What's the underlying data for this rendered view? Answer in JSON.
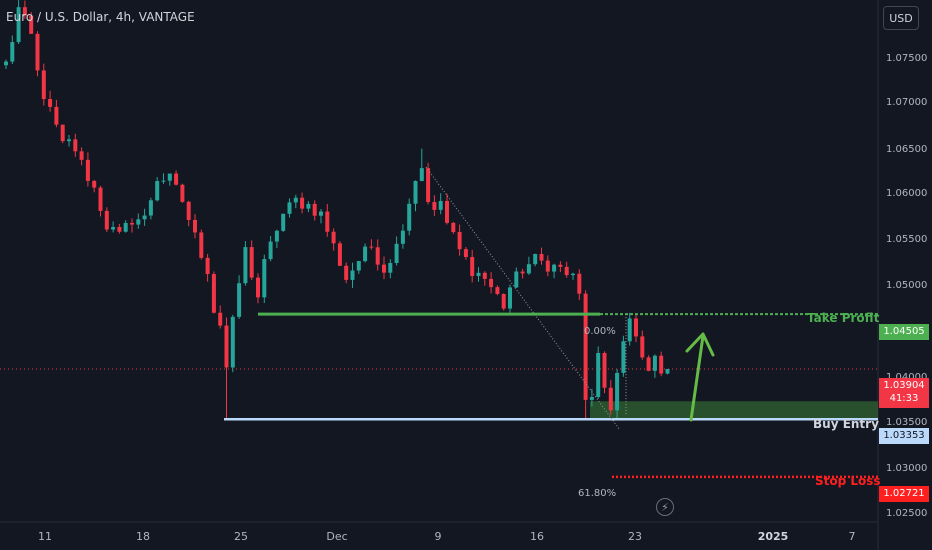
{
  "header": {
    "title": "Euro / U.S. Dollar, 4h, VANTAGE"
  },
  "currency_button": "USD",
  "price_axis": {
    "ticks": [
      "1.07500",
      "1.07000",
      "1.06500",
      "1.06000",
      "1.05500",
      "1.05000",
      "1.04000",
      "1.03500",
      "1.03000",
      "1.02500"
    ]
  },
  "time_axis": {
    "ticks": [
      {
        "label": "11",
        "bold": false
      },
      {
        "label": "18",
        "bold": false
      },
      {
        "label": "25",
        "bold": false
      },
      {
        "label": "Dec",
        "bold": false
      },
      {
        "label": "9",
        "bold": false
      },
      {
        "label": "16",
        "bold": false
      },
      {
        "label": "23",
        "bold": false
      },
      {
        "label": "2025",
        "bold": true
      },
      {
        "label": "7",
        "bold": false
      }
    ]
  },
  "price_tags": {
    "take_profit": "1.04505",
    "current_price": "1.03904",
    "countdown": "41:33",
    "buy_entry": "1.03353",
    "stop_loss": "1.02721"
  },
  "annotations": {
    "take_profit": "Take Profit",
    "buy_entry": "Buy Entry",
    "stop_loss": "Stop Loss",
    "fib_top": "0.00%",
    "fib_bottom": "61.80%"
  },
  "colors": {
    "background": "#131722",
    "up": "#26a69a",
    "down": "#f23645",
    "take_profit": "#4caf50",
    "buy_entry_line": "#bbd9fb",
    "buy_zone": "#2e5a2e",
    "stop_loss": "#ff1f1f",
    "arrow": "#66bb46"
  },
  "chart_data": {
    "type": "candlestick",
    "symbol": "Euro / U.S. Dollar",
    "interval": "4h",
    "ylim": [
      1.0245,
      1.0795
    ],
    "levels": {
      "take_profit": 1.04505,
      "current": 1.03904,
      "buy_entry": 1.03353,
      "buy_zone_top": 1.0355,
      "stop_loss": 1.02721
    },
    "anchor_points": [
      {
        "x": 0.0,
        "y": 1.0725
      },
      {
        "x": 1.0,
        "y": 1.0752
      },
      {
        "x": 2.0,
        "y": 1.0785
      },
      {
        "x": 3.0,
        "y": 1.077
      },
      {
        "x": 4.0,
        "y": 1.0755
      },
      {
        "x": 5.0,
        "y": 1.0715
      },
      {
        "x": 6.5,
        "y": 1.068
      },
      {
        "x": 8.0,
        "y": 1.0655
      },
      {
        "x": 9.0,
        "y": 1.0635
      },
      {
        "x": 10.5,
        "y": 1.064
      },
      {
        "x": 12.0,
        "y": 1.0615
      },
      {
        "x": 14.0,
        "y": 1.0588
      },
      {
        "x": 16.0,
        "y": 1.0548
      },
      {
        "x": 18.0,
        "y": 1.0535
      },
      {
        "x": 20.0,
        "y": 1.0555
      },
      {
        "x": 22.0,
        "y": 1.0555
      },
      {
        "x": 24.0,
        "y": 1.06
      },
      {
        "x": 26.0,
        "y": 1.0598
      },
      {
        "x": 28.0,
        "y": 1.0575
      },
      {
        "x": 30.0,
        "y": 1.0535
      },
      {
        "x": 32.0,
        "y": 1.05
      },
      {
        "x": 33.0,
        "y": 1.0455
      },
      {
        "x": 34.0,
        "y": 1.044
      },
      {
        "x": 35.0,
        "y": 1.0392
      },
      {
        "x": 36.0,
        "y": 1.044
      },
      {
        "x": 37.0,
        "y": 1.0485
      },
      {
        "x": 38.0,
        "y": 1.052
      },
      {
        "x": 40.0,
        "y": 1.047
      },
      {
        "x": 41.0,
        "y": 1.0505
      },
      {
        "x": 43.0,
        "y": 1.0545
      },
      {
        "x": 44.0,
        "y": 1.056
      },
      {
        "x": 46.0,
        "y": 1.0575
      },
      {
        "x": 48.0,
        "y": 1.057
      },
      {
        "x": 50.0,
        "y": 1.056
      },
      {
        "x": 52.0,
        "y": 1.0525
      },
      {
        "x": 54.0,
        "y": 1.049
      },
      {
        "x": 56.0,
        "y": 1.051
      },
      {
        "x": 58.0,
        "y": 1.0525
      },
      {
        "x": 60.0,
        "y": 1.05
      },
      {
        "x": 62.0,
        "y": 1.0525
      },
      {
        "x": 64.0,
        "y": 1.0575
      },
      {
        "x": 65.0,
        "y": 1.06
      },
      {
        "x": 66.0,
        "y": 1.0612
      },
      {
        "x": 67.0,
        "y": 1.0578
      },
      {
        "x": 68.0,
        "y": 1.056
      },
      {
        "x": 69.0,
        "y": 1.0575
      },
      {
        "x": 70.0,
        "y": 1.055
      },
      {
        "x": 72.0,
        "y": 1.052
      },
      {
        "x": 74.0,
        "y": 1.05
      },
      {
        "x": 76.0,
        "y": 1.049
      },
      {
        "x": 78.0,
        "y": 1.047
      },
      {
        "x": 79.0,
        "y": 1.046
      },
      {
        "x": 80.0,
        "y": 1.048
      },
      {
        "x": 82.0,
        "y": 1.05
      },
      {
        "x": 84.0,
        "y": 1.051
      },
      {
        "x": 86.0,
        "y": 1.0505
      },
      {
        "x": 88.0,
        "y": 1.05
      },
      {
        "x": 90.0,
        "y": 1.049
      },
      {
        "x": 91.0,
        "y": 1.047
      },
      {
        "x": 92.0,
        "y": 1.036
      },
      {
        "x": 93.0,
        "y": 1.0355
      },
      {
        "x": 94.0,
        "y": 1.04
      },
      {
        "x": 95.0,
        "y": 1.037
      },
      {
        "x": 96.0,
        "y": 1.035
      },
      {
        "x": 97.0,
        "y": 1.0385
      },
      {
        "x": 98.0,
        "y": 1.0418
      },
      {
        "x": 99.0,
        "y": 1.044
      },
      {
        "x": 100.0,
        "y": 1.0425
      },
      {
        "x": 101.0,
        "y": 1.04
      },
      {
        "x": 102.0,
        "y": 1.0395
      },
      {
        "x": 103.0,
        "y": 1.0398
      },
      {
        "x": 104.0,
        "y": 1.0392
      },
      {
        "x": 105.0,
        "y": 1.03904
      }
    ]
  }
}
